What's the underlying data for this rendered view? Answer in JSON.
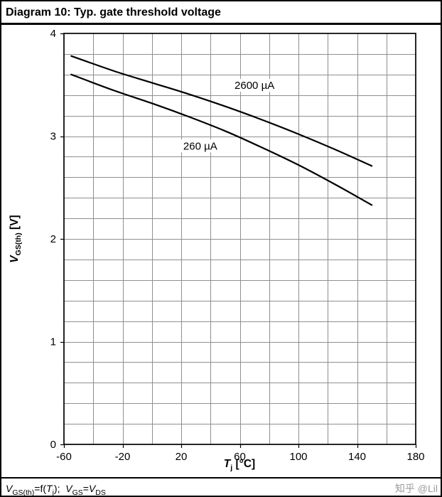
{
  "figure": {
    "title": "Diagram 10: Typ. gate threshold voltage"
  },
  "axes": {
    "y": {
      "symbol": "V",
      "subscript": "GS(th)",
      "unit": " [V]"
    },
    "x": {
      "symbol": "T",
      "subscript": "j",
      "unit": " [°C]"
    }
  },
  "footer": {
    "caption": {
      "sym1": "V",
      "sub1": "GS(th)",
      "mid1": "=f(",
      "sym2": "T",
      "sub2": "j",
      "mid2": ");  ",
      "sym3": "V",
      "sub3": "GS",
      "mid3": "=",
      "sym4": "V",
      "sub4": "DS"
    },
    "watermark": "知乎 @Lil"
  },
  "chart_data": {
    "type": "line",
    "title": "Diagram 10: Typ. gate threshold voltage",
    "xlabel": "Tj [°C]",
    "ylabel": "VGS(th) [V]",
    "xlim": [
      -60,
      180
    ],
    "ylim": [
      0,
      4
    ],
    "x_major_ticks": [
      -60,
      -20,
      20,
      60,
      100,
      140,
      180
    ],
    "y_major_ticks": [
      0,
      1,
      2,
      3,
      4
    ],
    "x_minor_step": 20,
    "y_minor_step": 0.2,
    "grid": true,
    "legend_position": "inline-labels",
    "series": [
      {
        "name": "2600 µA",
        "x": [
          -55,
          -25,
          0,
          25,
          50,
          75,
          100,
          125,
          150
        ],
        "y": [
          3.78,
          3.63,
          3.52,
          3.41,
          3.29,
          3.16,
          3.02,
          2.87,
          2.71
        ],
        "label_at": {
          "x": 70,
          "y": 3.46
        }
      },
      {
        "name": "260 µA",
        "x": [
          -55,
          -25,
          0,
          25,
          50,
          75,
          100,
          125,
          150
        ],
        "y": [
          3.6,
          3.44,
          3.32,
          3.19,
          3.05,
          2.89,
          2.72,
          2.53,
          2.33
        ],
        "label_at": {
          "x": 33,
          "y": 2.87
        }
      }
    ]
  }
}
